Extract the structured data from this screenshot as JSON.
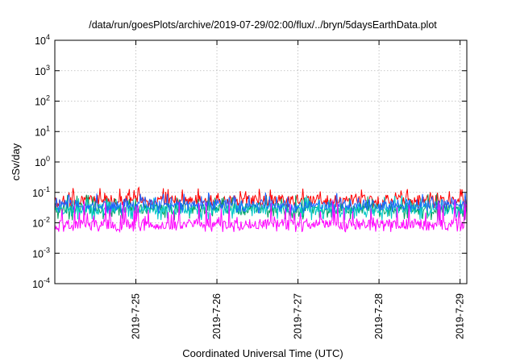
{
  "chart_data": {
    "type": "line",
    "title": "/data/run/goesPlots/archive/2019-07-29/02:00/flux/../bryn/5daysEarthData.plot",
    "xlabel": "Coordinated Universal Time (UTC)",
    "ylabel": "cSv/day",
    "yscale": "log",
    "ylim": [
      0.0001,
      10000
    ],
    "y_ticks": [
      {
        "base": "10",
        "exp": "-4",
        "value": 0.0001
      },
      {
        "base": "10",
        "exp": "-3",
        "value": 0.001
      },
      {
        "base": "10",
        "exp": "-2",
        "value": 0.01
      },
      {
        "base": "10",
        "exp": "-1",
        "value": 0.1
      },
      {
        "base": "10",
        "exp": "0",
        "value": 1
      },
      {
        "base": "10",
        "exp": "1",
        "value": 10
      },
      {
        "base": "10",
        "exp": "2",
        "value": 100
      },
      {
        "base": "10",
        "exp": "3",
        "value": 1000
      },
      {
        "base": "10",
        "exp": "4",
        "value": 10000
      }
    ],
    "xlim": [
      "2019-07-24 00:00",
      "2019-07-29 02:00"
    ],
    "x_ticks": [
      "2019-7-25",
      "2019-7-26",
      "2019-7-27",
      "2019-7-28",
      "2019-7-29"
    ],
    "grid": true,
    "legend": "none",
    "series": [
      {
        "color": "#ff0000",
        "typical": 0.055,
        "min": 0.03,
        "max": 0.15
      },
      {
        "color": "#00a060",
        "typical": 0.03,
        "min": 0.012,
        "max": 0.09
      },
      {
        "color": "#00c8c8",
        "typical": 0.028,
        "min": 0.012,
        "max": 0.08
      },
      {
        "color": "#1e64ff",
        "typical": 0.04,
        "min": 0.02,
        "max": 0.1
      },
      {
        "color": "#ff00ff",
        "typical": 0.009,
        "min": 0.005,
        "max": 0.06
      }
    ]
  }
}
